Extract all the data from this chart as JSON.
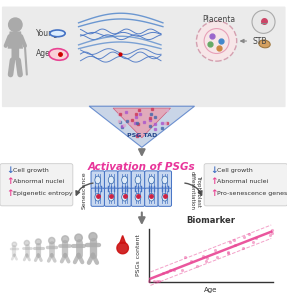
{
  "bg_color": "#ffffff",
  "top_panel_bg": "#ebebeb",
  "title": "Activation of PSGs",
  "title_color": "#e8359a",
  "top_labels": {
    "young": "Young",
    "aged": "Aged",
    "placenta": "Placenta",
    "stb": "STB"
  },
  "psg_tad_label": "PSG TAD",
  "left_box_items": [
    {
      "arrow": "↓",
      "color": "#4472c4",
      "text": "Cell growth"
    },
    {
      "arrow": "↑",
      "color": "#e84393",
      "text": "Abnormal nuclei"
    },
    {
      "arrow": "↑",
      "color": "#e84393",
      "text": "Epigenetic entropy"
    }
  ],
  "right_box_items": [
    {
      "arrow": "↓",
      "color": "#4472c4",
      "text": "Cell growth"
    },
    {
      "arrow": "↑",
      "color": "#e84393",
      "text": "Abnormal nuclei"
    },
    {
      "arrow": "↑",
      "color": "#e84393",
      "text": "Pro-senescence genes"
    }
  ],
  "left_label": "Senescence",
  "right_label": "Trophoblast\ndifferentiation",
  "biomarker_title": "Biomarker",
  "biomarker_xlabel": "Age",
  "biomarker_ylabel": "PSGs content",
  "arrow_color": "#888888",
  "box_bg": "#f2f2f2",
  "human_silhouette_color": "#aaaaaa",
  "blood_color": "#cc1111",
  "chromatin_color": "#4472c4",
  "pink_color": "#e84393"
}
